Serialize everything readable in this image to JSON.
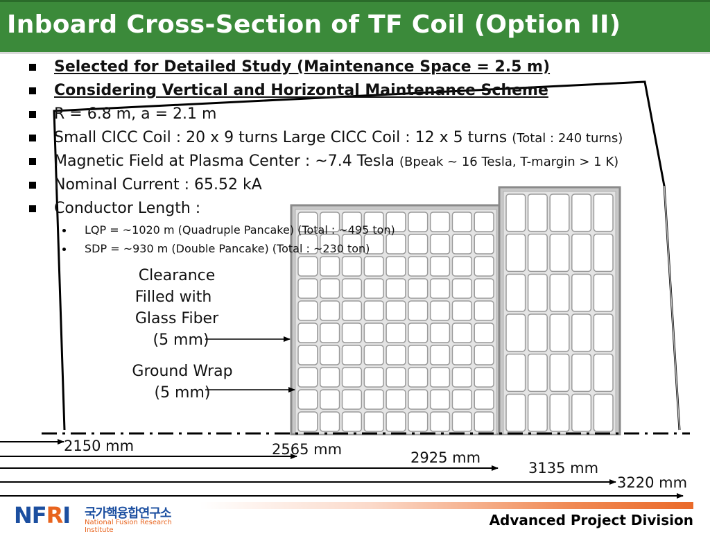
{
  "slide": {
    "title": "Inboard Cross-Section of TF Coil (Option II)",
    "bullets": [
      {
        "text": "Selected for Detailed Study (Maintenance Space = 2.5 m)",
        "style": "bold-underline"
      },
      {
        "text": "Considering Vertical and Horizontal Maintenance Scheme",
        "style": "bold-underline"
      },
      {
        "text": "R = 6.8 m, a = 2.1 m"
      },
      {
        "text": "Small CICC Coil : 20 x 9 turns Large CICC Coil : 12 x 5 turns ",
        "note": "(Total : 240 turns)"
      },
      {
        "text": "Magnetic Field at Plasma Center : ~7.4 Tesla ",
        "note": "(Bpeak ~ 16 Tesla, T-margin > 1 K)"
      },
      {
        "text": "Nominal Current : 65.52 kA"
      },
      {
        "text": "Conductor Length :"
      }
    ],
    "sub_bullets": [
      "LQP = ~1020 m (Quadruple Pancake) (Total : ~495 ton)",
      "SDP = ~930 m (Double Pancake) (Total : ~230 ton)"
    ]
  },
  "diagram": {
    "labels": {
      "clearance": [
        "Clearance",
        "Filled with",
        "Glass Fiber",
        "(5 mm)"
      ],
      "ground_wrap": [
        "Ground Wrap",
        "(5 mm)"
      ]
    },
    "small_coil": {
      "rows_visible": 10,
      "cols": 9
    },
    "large_coil": {
      "rows_visible": 6,
      "cols": 5
    },
    "radii": [
      "2150 mm",
      "2565 mm",
      "2925 mm",
      "3135 mm",
      "3220 mm"
    ],
    "colors": {
      "coil_outer": "#8a8a8a",
      "coil_inner": "#dcdcdc",
      "cell_fill": "#ffffff",
      "cell_stroke": "#9a9a9a"
    }
  },
  "footer": {
    "division": "Advanced Project Division",
    "logo_mark": "NFRI",
    "logo_korean": "국가핵융합연구소",
    "logo_english": "National Fusion Research Institute"
  }
}
